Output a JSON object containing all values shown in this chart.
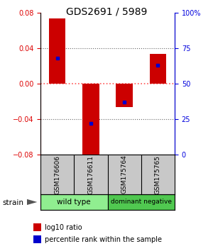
{
  "title": "GDS2691 / 5989",
  "samples": [
    "GSM176606",
    "GSM176611",
    "GSM175764",
    "GSM175765"
  ],
  "log10_ratios": [
    0.073,
    -0.087,
    -0.027,
    0.033
  ],
  "percentile_ranks_pct": [
    68,
    22,
    37,
    63
  ],
  "groups": [
    {
      "label": "wild type",
      "color": "#90EE90",
      "samples": [
        0,
        1
      ]
    },
    {
      "label": "dominant negative",
      "color": "#50C850",
      "samples": [
        2,
        3
      ]
    }
  ],
  "ylim": [
    -0.08,
    0.08
  ],
  "yticks_left": [
    -0.08,
    -0.04,
    0,
    0.04,
    0.08
  ],
  "yticks_right": [
    0,
    25,
    50,
    75,
    100
  ],
  "left_color": "#DD0000",
  "right_color": "#0000DD",
  "bar_color": "#CC0000",
  "dot_color": "#0000CC",
  "zero_line_color": "#FF5555",
  "grid_color": "#666666",
  "label_area_color": "#C8C8C8",
  "legend_ratio_label": "log10 ratio",
  "legend_rank_label": "percentile rank within the sample",
  "strain_label": "strain",
  "bar_width": 0.5
}
